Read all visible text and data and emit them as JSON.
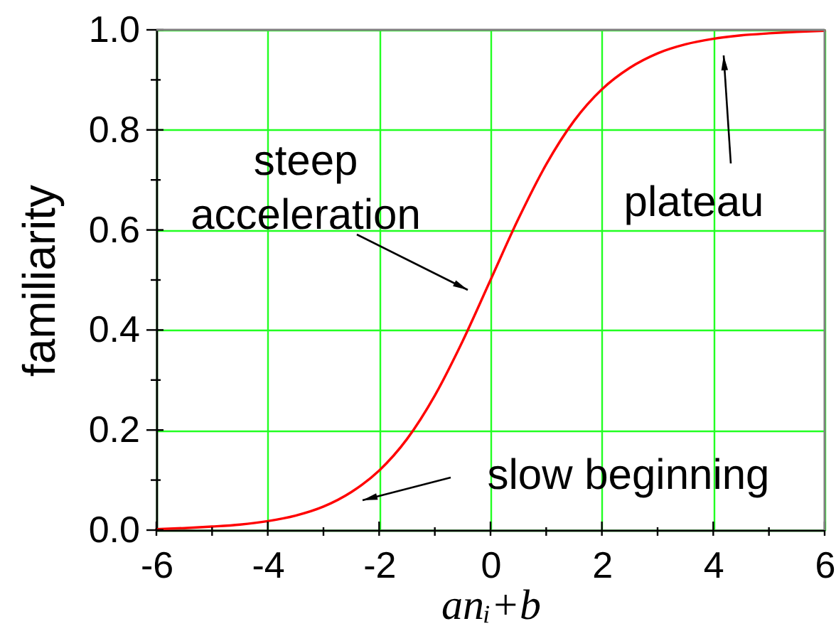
{
  "chart_data": {
    "type": "line",
    "xlabel": "anᵢ+b",
    "ylabel": "familiarity",
    "x": [
      -6,
      -5.5,
      -5,
      -4.5,
      -4,
      -3.5,
      -3,
      -2.5,
      -2,
      -1.5,
      -1,
      -0.5,
      0,
      0.5,
      1,
      1.5,
      2,
      2.5,
      3,
      3.5,
      4,
      4.5,
      5,
      5.5,
      6
    ],
    "series": [
      {
        "color": "#ff0000",
        "values": [
          0.002,
          0.004,
          0.007,
          0.011,
          0.018,
          0.029,
          0.047,
          0.076,
          0.119,
          0.182,
          0.269,
          0.378,
          0.5,
          0.622,
          0.731,
          0.818,
          0.881,
          0.924,
          0.953,
          0.971,
          0.982,
          0.989,
          0.993,
          0.996,
          0.998
        ]
      }
    ],
    "xlim": [
      -6,
      6
    ],
    "ylim": [
      0,
      1
    ],
    "xticks": [
      -6,
      {
        "value": -5,
        "label": null
      },
      -4,
      {
        "value": -3,
        "label": null
      },
      -2,
      {
        "value": -1,
        "label": null
      },
      0,
      {
        "value": 1,
        "label": null
      },
      2,
      {
        "value": 3,
        "label": null
      },
      4,
      {
        "value": 5,
        "label": null
      },
      6
    ],
    "yticks": [
      {
        "value": 0,
        "label": "0.0"
      },
      {
        "value": 0.1,
        "label": null
      },
      0.2,
      {
        "value": 0.3,
        "label": null
      },
      0.4,
      {
        "value": 0.5,
        "label": null
      },
      0.6,
      {
        "value": 0.7,
        "label": null
      },
      0.8,
      {
        "value": 0.9,
        "label": null
      },
      {
        "value": 1,
        "label": "1.0"
      }
    ],
    "grid": true,
    "line_style": "solid",
    "annotations": [
      "steep\nacceleration",
      "plateau",
      "slow beginning"
    ]
  }
}
